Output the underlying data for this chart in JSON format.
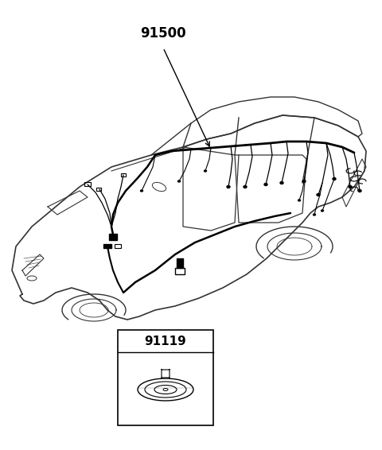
{
  "bg_color": "#ffffff",
  "part_label_main": "91500",
  "part_label_sub": "91119",
  "line_color": "#000000",
  "car_outline_color": "#333333",
  "fig_width": 4.8,
  "fig_height": 5.66,
  "dpi": 100
}
